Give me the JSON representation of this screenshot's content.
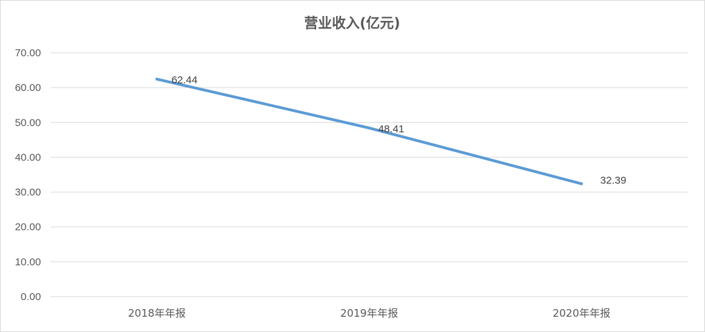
{
  "chart_data": {
    "type": "line",
    "title": "营业收入(亿元)",
    "categories": [
      "2018年年报",
      "2019年年报",
      "2020年年报"
    ],
    "series": [
      {
        "values": [
          62.44,
          48.41,
          32.39
        ],
        "color": "#5b9bd5"
      }
    ],
    "ylim": [
      0,
      70
    ],
    "yticks": [
      "0.00",
      "10.00",
      "20.00",
      "30.00",
      "40.00",
      "50.00",
      "60.00",
      "70.00"
    ],
    "data_labels": [
      "62.44",
      "48.41",
      "32.39"
    ],
    "grid": true,
    "legend": "none"
  }
}
